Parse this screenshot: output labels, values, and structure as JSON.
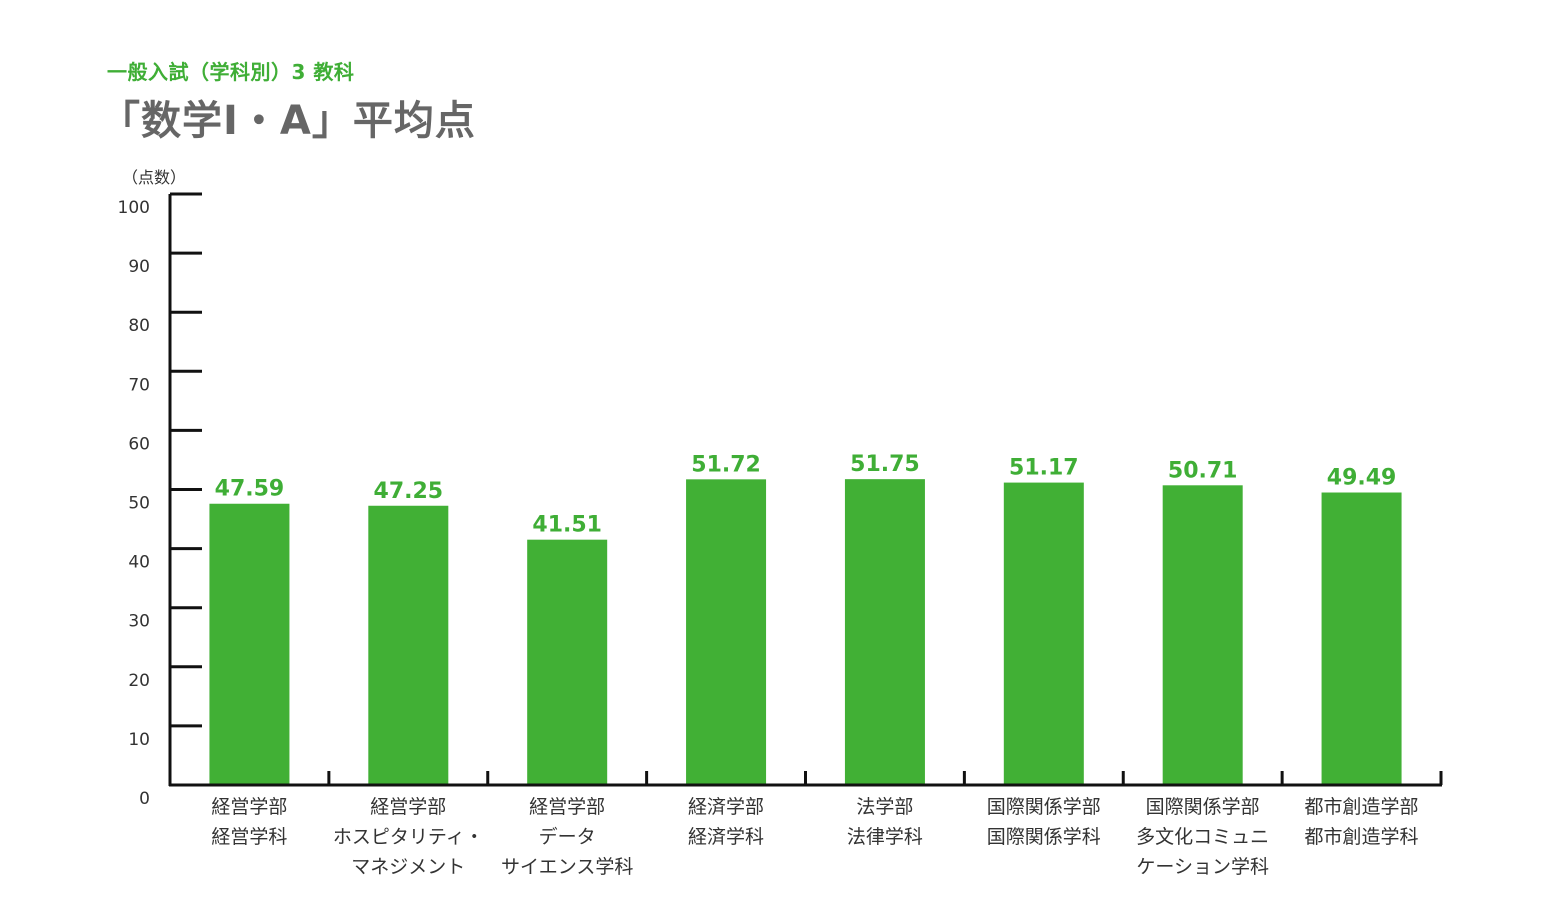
{
  "header": {
    "subtitle": "一般入試（学科別）3 教科",
    "title": "「数学Ⅰ・A」平均点"
  },
  "colors": {
    "bar": "#41b035",
    "axis": "#111111",
    "accent": "#3fae36",
    "title": "#666666"
  },
  "chart_data": {
    "type": "bar",
    "title": "「数学Ⅰ・A」平均点",
    "subtitle": "一般入試（学科別）3 教科",
    "ylabel": "（点数）",
    "ylim": [
      0,
      100
    ],
    "yticks": [
      0,
      10,
      20,
      30,
      40,
      50,
      60,
      70,
      80,
      90,
      100
    ],
    "grid": false,
    "categories": [
      [
        "経営学部",
        "経営学科"
      ],
      [
        "経営学部",
        "ホスピタリティ・",
        "マネジメント"
      ],
      [
        "経営学部",
        "データ",
        "サイエンス学科"
      ],
      [
        "経済学部",
        "経済学科"
      ],
      [
        "法学部",
        "法律学科"
      ],
      [
        "国際関係学部",
        "国際関係学科"
      ],
      [
        "国際関係学部",
        "多文化コミュニ",
        "ケーション学科"
      ],
      [
        "都市創造学部",
        "都市創造学科"
      ]
    ],
    "values": [
      47.59,
      47.25,
      41.51,
      51.72,
      51.75,
      51.17,
      50.71,
      49.49
    ],
    "value_labels": [
      "47.59",
      "47.25",
      "41.51",
      "51.72",
      "51.75",
      "51.17",
      "50.71",
      "49.49"
    ]
  }
}
